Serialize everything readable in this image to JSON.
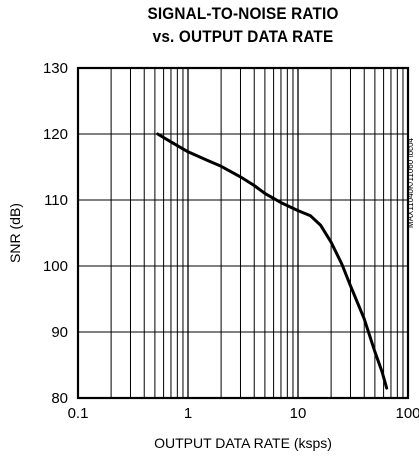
{
  "chart_data": {
    "type": "line",
    "title": [
      "SIGNAL-TO-NOISE RATIO",
      "vs. OUTPUT DATA RATE"
    ],
    "xlabel": "OUTPUT DATA RATE (ksps)",
    "ylabel": "SNR (dB)",
    "x_scale": "log",
    "xlim": [
      0.1,
      100
    ],
    "ylim": [
      80,
      130
    ],
    "x_ticks": [
      "0.1",
      "1",
      "10",
      "100"
    ],
    "y_ticks": [
      "80",
      "90",
      "100",
      "110",
      "120",
      "130"
    ],
    "grid": true,
    "watermark": "MAX11040K/11060 toc04",
    "series": [
      {
        "x": [
          0.53,
          0.7,
          1.0,
          1.5,
          2.0,
          3.0,
          4.0,
          5.0,
          7.0,
          10.0,
          13.0,
          16.0,
          20.0,
          25.0,
          30.0,
          40.0,
          50.0,
          58.0,
          64.0
        ],
        "y": [
          120.0,
          118.8,
          117.3,
          116.0,
          115.1,
          113.5,
          112.2,
          111.0,
          109.6,
          108.4,
          107.6,
          106.2,
          103.6,
          100.3,
          97.0,
          92.0,
          87.0,
          84.0,
          81.5
        ]
      }
    ]
  }
}
